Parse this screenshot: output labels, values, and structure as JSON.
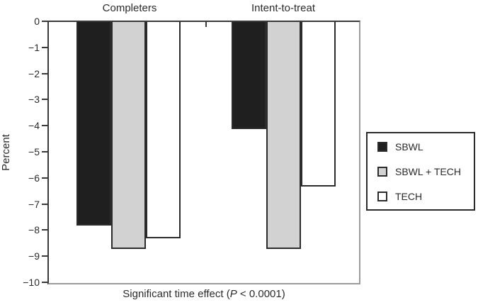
{
  "chart_data": {
    "type": "bar",
    "title": "",
    "categories": [
      "Completers",
      "Intent-to-treat"
    ],
    "series": [
      {
        "name": "SBWL",
        "color": "#1f1f1f",
        "values": [
          -7.8,
          -4.1
        ]
      },
      {
        "name": "SBWL + TECH",
        "color": "#d2d2d2",
        "values": [
          -8.7,
          -8.7
        ]
      },
      {
        "name": "TECH",
        "color": "#ffffff",
        "values": [
          -8.3,
          -6.3
        ]
      }
    ],
    "ylabel": "Percent",
    "xlabel": {
      "prefix": "Significant time effect (",
      "italic": "P",
      "suffix": " < 0.0001)"
    },
    "ylim": [
      -10,
      0
    ],
    "yticks": [
      "0",
      "−1",
      "−2",
      "−3",
      "−4",
      "−5",
      "−6",
      "−7",
      "−8",
      "−9",
      "−10"
    ],
    "grid": false,
    "legend_position": "right",
    "colors": {
      "axis_dark": "#3a3a3a",
      "axis_light": "#9b9b9b",
      "bar_border": "#2b2b2b",
      "text": "#2b2b2b"
    }
  }
}
